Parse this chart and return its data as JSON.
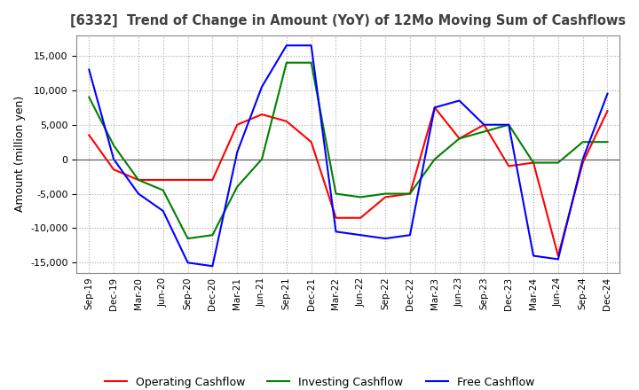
{
  "title": "[6332]  Trend of Change in Amount (YoY) of 12Mo Moving Sum of Cashflows",
  "ylabel": "Amount (million yen)",
  "yticks": [
    15000,
    10000,
    5000,
    0,
    -5000,
    -10000,
    -15000
  ],
  "ylim": [
    -16500,
    18000
  ],
  "labels": [
    "Sep-19",
    "Dec-19",
    "Mar-20",
    "Jun-20",
    "Sep-20",
    "Dec-20",
    "Mar-21",
    "Jun-21",
    "Sep-21",
    "Dec-21",
    "Mar-22",
    "Jun-22",
    "Sep-22",
    "Dec-22",
    "Mar-23",
    "Jun-23",
    "Sep-23",
    "Dec-23",
    "Mar-24",
    "Jun-24",
    "Sep-24",
    "Dec-24"
  ],
  "operating": [
    3500,
    -1500,
    -3000,
    -3000,
    -3000,
    -3000,
    5000,
    6500,
    5500,
    2500,
    -8500,
    -8500,
    -5500,
    -5000,
    7500,
    3000,
    5000,
    -1000,
    -500,
    -14000,
    -500,
    7000
  ],
  "investing": [
    9000,
    2000,
    -3000,
    -4500,
    -11500,
    -11000,
    -4000,
    0,
    14000,
    14000,
    -5000,
    -5500,
    -5000,
    -5000,
    0,
    3000,
    4000,
    5000,
    -500,
    -500,
    2500,
    2500
  ],
  "free": [
    13000,
    0,
    -5000,
    -7500,
    -15000,
    -15500,
    1000,
    10500,
    16500,
    16500,
    -10500,
    -11000,
    -11500,
    -11000,
    7500,
    8500,
    5000,
    5000,
    -14000,
    -14500,
    0,
    9500
  ],
  "operating_color": "#ff0000",
  "investing_color": "#008000",
  "free_color": "#0000ff",
  "background_color": "#ffffff",
  "grid_color": "#aaaaaa",
  "title_color": "#404040"
}
